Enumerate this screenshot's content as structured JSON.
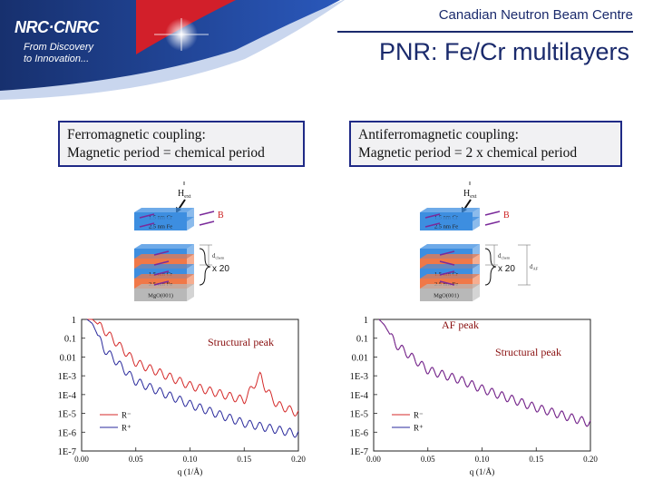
{
  "header": {
    "logo": "NRC·CNRC",
    "tagline_line1": "From Discovery",
    "tagline_line2": "to Innovation...",
    "centre_name": "Canadian Neutron Beam Centre",
    "slide_title": "PNR: Fe/Cr multilayers"
  },
  "panels": [
    {
      "box_line1": "Ferromagnetic coupling:",
      "box_line2": "Magnetic period = chemical period",
      "layer_cr": "1.5 nm Cr",
      "layer_fe": "2.5 nm Fe",
      "substrate": "MgO(001)",
      "field_label": "H",
      "field_sub": "ext",
      "b_label": "B",
      "period_label": "d",
      "period_sub": "chem",
      "repeat_label": "x 20",
      "annotation": "Structural peak",
      "y_ticks": [
        "1",
        "0.1",
        "0.01",
        "1E-3",
        "1E-4",
        "1E-5",
        "1E-6",
        "1E-7"
      ],
      "x_ticks": [
        "0.00",
        "0.05",
        "0.10",
        "0.15",
        "0.20"
      ],
      "xlabel": "q (1/Å)",
      "legend": [
        "R⁻",
        "R⁺"
      ]
    },
    {
      "box_line1": "Antiferromagnetic coupling:",
      "box_line2": "Magnetic period = 2 x chemical period",
      "layer_cr": "1.5 nm Cr",
      "layer_fe": "2.5 nm Fe",
      "substrate": "MgO(001)",
      "field_label": "H",
      "field_sub": "ext",
      "b_label": "B",
      "period_label": "d",
      "period_sub": "chem",
      "period2_label": "d",
      "period2_sub": "AF",
      "repeat_label": "x 20",
      "annotation_af": "AF peak",
      "annotation": "Structural peak",
      "y_ticks": [
        "1",
        "0.1",
        "0.01",
        "1E-3",
        "1E-4",
        "1E-5",
        "1E-6",
        "1E-7"
      ],
      "x_ticks": [
        "0.00",
        "0.05",
        "0.10",
        "0.15",
        "0.20"
      ],
      "xlabel": "q (1/Å)",
      "legend": [
        "R⁻",
        "R⁺"
      ]
    }
  ],
  "colors": {
    "navy": "#1a2a6c",
    "banner_blue": "#1d3f98",
    "banner_red": "#d21f2a",
    "series_minus": "#d42a2a",
    "series_plus": "#2a2a9c",
    "series_plus_af": "#6a2a9c",
    "cr_layer": "#3d8ee0",
    "fe_layer": "#f07848"
  },
  "chart_data": [
    {
      "type": "line",
      "title": "",
      "xlabel": "q (1/Å)",
      "ylabel": "",
      "y_scale": "log",
      "xlim": [
        0.0,
        0.2
      ],
      "ylim": [
        1e-07,
        1
      ],
      "series": [
        {
          "name": "R⁻",
          "x": [
            0.005,
            0.01,
            0.02,
            0.05,
            0.1,
            0.15,
            0.16,
            0.165,
            0.17,
            0.18,
            0.2
          ],
          "y": [
            1,
            1,
            0.3,
            0.005,
            0.0003,
            5e-05,
            0.0004,
            0.001,
            0.0002,
            3e-05,
            1e-05
          ]
        },
        {
          "name": "R⁺",
          "x": [
            0.005,
            0.01,
            0.02,
            0.05,
            0.1,
            0.15,
            0.2
          ],
          "y": [
            1,
            0.6,
            0.03,
            0.0005,
            3e-05,
            3e-06,
            8e-07
          ]
        }
      ],
      "annotations": [
        "Structural peak"
      ]
    },
    {
      "type": "line",
      "title": "",
      "xlabel": "q (1/Å)",
      "ylabel": "",
      "y_scale": "log",
      "xlim": [
        0.0,
        0.2
      ],
      "ylim": [
        1e-07,
        1
      ],
      "series": [
        {
          "name": "R⁻",
          "x": [
            0.005,
            0.01,
            0.02,
            0.05,
            0.08,
            0.1,
            0.15,
            0.2
          ],
          "y": [
            1,
            0.5,
            0.05,
            0.002,
            0.0006,
            0.0002,
            2e-05,
            3e-06
          ]
        },
        {
          "name": "R⁺",
          "x": [
            0.005,
            0.01,
            0.02,
            0.05,
            0.08,
            0.1,
            0.15,
            0.2
          ],
          "y": [
            1,
            0.5,
            0.05,
            0.002,
            0.0006,
            0.0002,
            2e-05,
            3e-06
          ]
        }
      ],
      "annotations": [
        "AF peak",
        "Structural peak"
      ]
    }
  ]
}
